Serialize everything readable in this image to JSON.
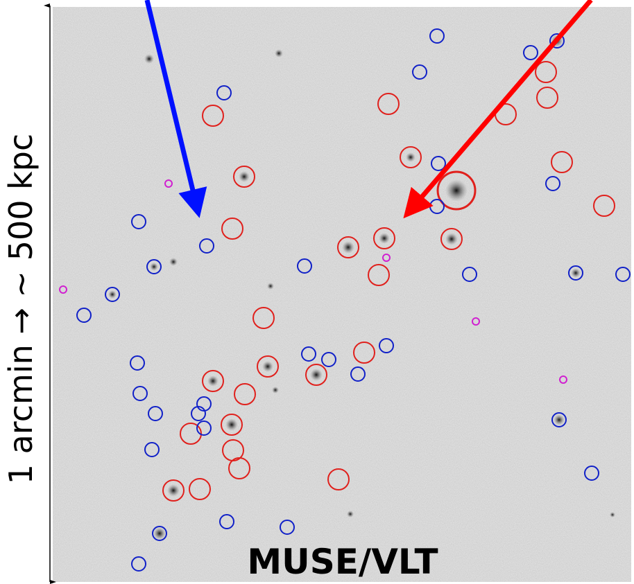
{
  "scale_label": "1 arcmin → ~ 500 kpc",
  "instrument_label": "MUSE/VLT"
}
